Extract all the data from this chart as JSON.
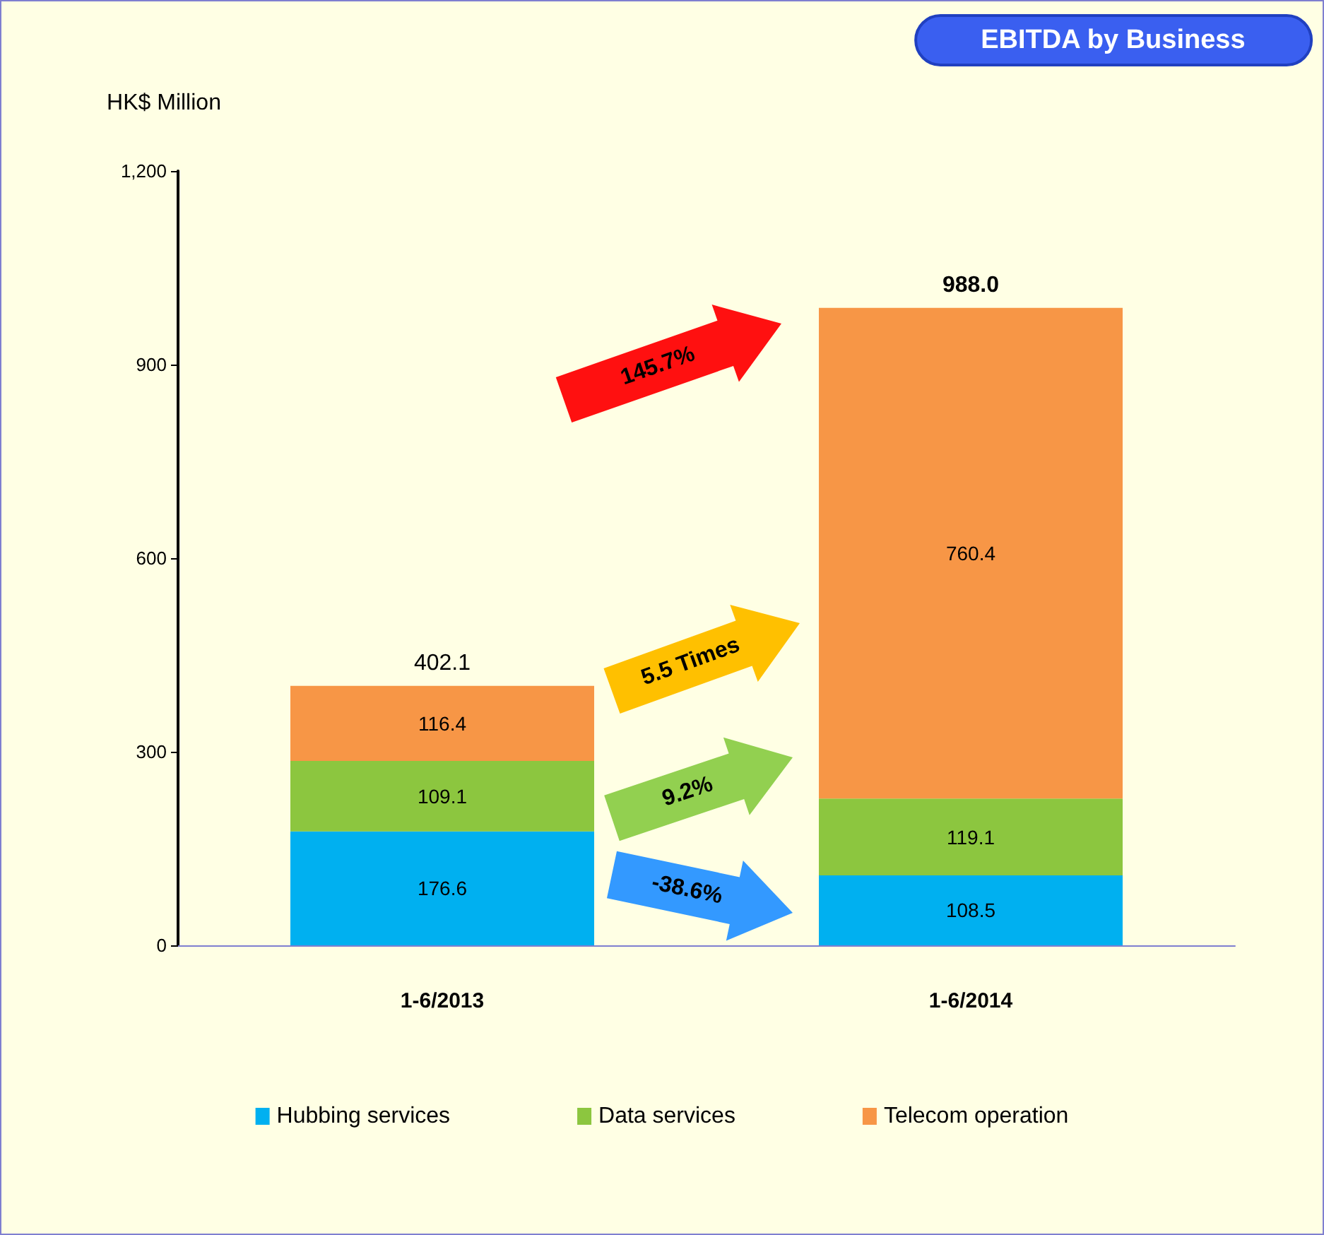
{
  "chart_data": {
    "type": "bar",
    "title": "EBITDA by Business",
    "ylabel": "HK$ Million",
    "categories": [
      "1-6/2013",
      "1-6/2014"
    ],
    "series": [
      {
        "name": "Hubbing services",
        "color": "#00b0f0",
        "values": [
          176.6,
          108.5
        ]
      },
      {
        "name": "Data services",
        "color": "#8cc63f",
        "values": [
          109.1,
          119.1
        ]
      },
      {
        "name": "Telecom operation",
        "color": "#f79646",
        "values": [
          116.4,
          760.4
        ]
      }
    ],
    "stacked": true,
    "data_labels": true,
    "totals": [
      "402.1",
      "988.0"
    ],
    "ylim": [
      0,
      1200
    ],
    "yticks": [
      0,
      300,
      600,
      900,
      {
        "value": 1200,
        "label": "1,200"
      }
    ],
    "grid": false,
    "legend": "bottom",
    "annotations": [
      "145.7%",
      "5.5 Times",
      "9.2%",
      "-38.6%"
    ]
  }
}
